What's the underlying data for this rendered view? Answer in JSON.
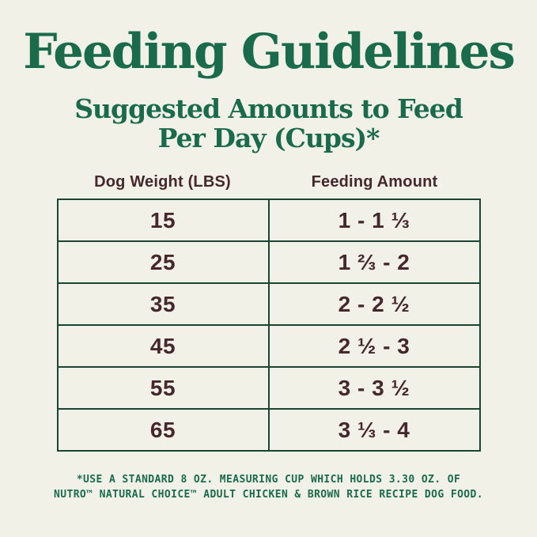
{
  "colors": {
    "background": "#F2F1E8",
    "heading_green": "#1A6B4B",
    "table_border_green": "#1C4432",
    "text_maroon": "#46282C"
  },
  "header": {
    "title": "Feeding Guidelines",
    "subtitle_lines": [
      "Suggested Amounts to Feed",
      "Per Day (Cups)*"
    ]
  },
  "table": {
    "columns": [
      "Dog Weight (LBS)",
      "Feeding Amount"
    ],
    "rows": [
      {
        "weight": "15",
        "amount": "1 - 1 ⅓"
      },
      {
        "weight": "25",
        "amount": "1 ⅔ - 2"
      },
      {
        "weight": "35",
        "amount": "2 - 2 ½"
      },
      {
        "weight": "45",
        "amount": "2 ½ - 3"
      },
      {
        "weight": "55",
        "amount": "3 - 3 ½"
      },
      {
        "weight": "65",
        "amount": "3 ⅓ - 4"
      }
    ]
  },
  "footnote": {
    "lines": [
      "*USE A STANDARD 8 OZ. MEASURING CUP WHICH HOLDS 3.30 OZ. OF",
      "NUTRO™ NATURAL CHOICE™ ADULT CHICKEN & BROWN RICE RECIPE DOG FOOD."
    ]
  }
}
